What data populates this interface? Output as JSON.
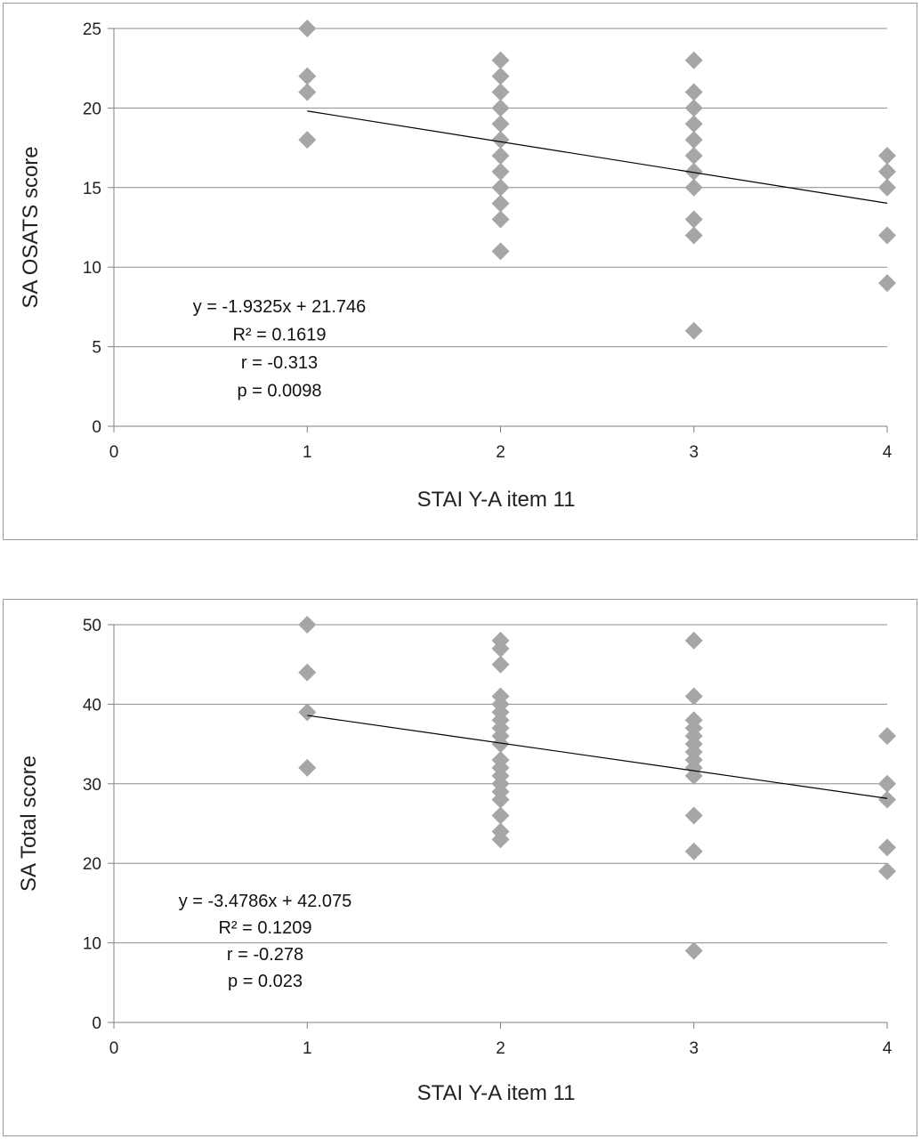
{
  "chart_data": [
    {
      "type": "scatter",
      "title": "",
      "xlabel": "STAI Y-A item 11",
      "ylabel": "SA OSATS score",
      "xlim": [
        0,
        4
      ],
      "ylim": [
        0,
        25
      ],
      "xticks": [
        0,
        1,
        2,
        3,
        4
      ],
      "yticks": [
        0,
        5,
        10,
        15,
        20,
        25
      ],
      "grid": "horizontal",
      "marker_color": "#a6a6a6",
      "line_color": "#000000",
      "series": [
        {
          "points": [
            [
              1,
              25
            ],
            [
              1,
              22
            ],
            [
              1,
              21
            ],
            [
              1,
              18
            ],
            [
              2,
              23
            ],
            [
              2,
              22
            ],
            [
              2,
              21
            ],
            [
              2,
              20
            ],
            [
              2,
              19
            ],
            [
              2,
              18
            ],
            [
              2,
              17
            ],
            [
              2,
              16
            ],
            [
              2,
              15
            ],
            [
              2,
              14
            ],
            [
              2,
              13
            ],
            [
              2,
              11
            ],
            [
              3,
              23
            ],
            [
              3,
              21
            ],
            [
              3,
              20
            ],
            [
              3,
              19
            ],
            [
              3,
              18
            ],
            [
              3,
              17
            ],
            [
              3,
              16
            ],
            [
              3,
              15
            ],
            [
              3,
              13
            ],
            [
              3,
              12
            ],
            [
              3,
              6
            ],
            [
              4,
              17
            ],
            [
              4,
              16
            ],
            [
              4,
              15
            ],
            [
              4,
              12
            ],
            [
              4,
              9
            ]
          ]
        }
      ],
      "trendline": {
        "slope": -1.9325,
        "intercept": 21.746,
        "x_range": [
          1,
          4
        ]
      },
      "annotations": [
        "y = -1.9325x + 21.746",
        "R² = 0.1619",
        "r = -0.313",
        "p = 0.0098"
      ]
    },
    {
      "type": "scatter",
      "title": "",
      "xlabel": "STAI Y-A item 11",
      "ylabel": "SA Total score",
      "xlim": [
        0,
        4
      ],
      "ylim": [
        0,
        50
      ],
      "xticks": [
        0,
        1,
        2,
        3,
        4
      ],
      "yticks": [
        0,
        10,
        20,
        30,
        40,
        50
      ],
      "grid": "horizontal",
      "marker_color": "#a6a6a6",
      "line_color": "#000000",
      "series": [
        {
          "points": [
            [
              1,
              50
            ],
            [
              1,
              44
            ],
            [
              1,
              39
            ],
            [
              1,
              32
            ],
            [
              2,
              48
            ],
            [
              2,
              47
            ],
            [
              2,
              45
            ],
            [
              2,
              41
            ],
            [
              2,
              40
            ],
            [
              2,
              39
            ],
            [
              2,
              38
            ],
            [
              2,
              37
            ],
            [
              2,
              36
            ],
            [
              2,
              35
            ],
            [
              2,
              33
            ],
            [
              2,
              32
            ],
            [
              2,
              31
            ],
            [
              2,
              30
            ],
            [
              2,
              29
            ],
            [
              2,
              28
            ],
            [
              2,
              26
            ],
            [
              2,
              24
            ],
            [
              2,
              23
            ],
            [
              3,
              48
            ],
            [
              3,
              41
            ],
            [
              3,
              38
            ],
            [
              3,
              37
            ],
            [
              3,
              36
            ],
            [
              3,
              35
            ],
            [
              3,
              34
            ],
            [
              3,
              33
            ],
            [
              3,
              32
            ],
            [
              3,
              31
            ],
            [
              3,
              26
            ],
            [
              3,
              21.5
            ],
            [
              3,
              9
            ],
            [
              4,
              36
            ],
            [
              4,
              30
            ],
            [
              4,
              28
            ],
            [
              4,
              22
            ],
            [
              4,
              19
            ]
          ]
        }
      ],
      "trendline": {
        "slope": -3.4786,
        "intercept": 42.075,
        "x_range": [
          1,
          4
        ]
      },
      "annotations": [
        "y = -3.4786x + 42.075",
        "R² = 0.1209",
        "r = -0.278",
        "p = 0.023"
      ]
    }
  ]
}
